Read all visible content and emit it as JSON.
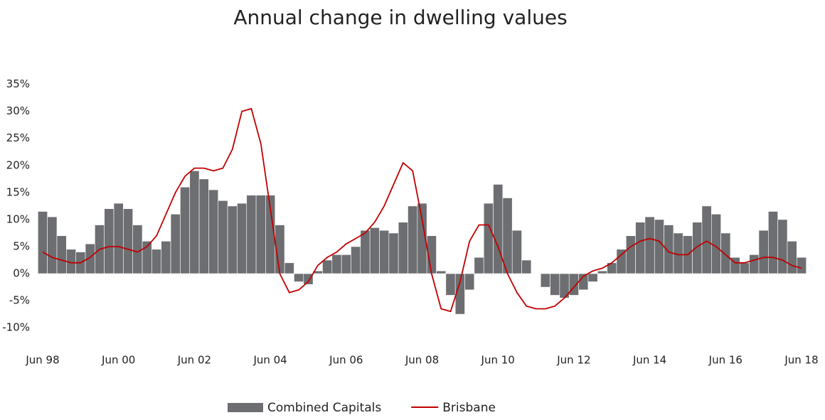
{
  "chart_data": {
    "type": "bar_line",
    "title": "Annual change in dwelling values",
    "categories": [
      "Jun 98",
      null,
      null,
      null,
      null,
      null,
      null,
      null,
      "Jun 00",
      null,
      null,
      null,
      null,
      null,
      null,
      null,
      "Jun 02",
      null,
      null,
      null,
      null,
      null,
      null,
      null,
      "Jun 04",
      null,
      null,
      null,
      null,
      null,
      null,
      null,
      "Jun 06",
      null,
      null,
      null,
      null,
      null,
      null,
      null,
      "Jun 08",
      null,
      null,
      null,
      null,
      null,
      null,
      null,
      "Jun 10",
      null,
      null,
      null,
      null,
      null,
      null,
      null,
      "Jun 12",
      null,
      null,
      null,
      null,
      null,
      null,
      null,
      "Jun 14",
      null,
      null,
      null,
      null,
      null,
      null,
      null,
      "Jun 16",
      null,
      null,
      null,
      null,
      null,
      null,
      null,
      "Jun 18"
    ],
    "series": [
      {
        "name": "Combined Capitals",
        "type": "bar",
        "color": "#6d6e71",
        "values": [
          11.5,
          10.5,
          7,
          4.5,
          4,
          5.5,
          9,
          12,
          13,
          12,
          9,
          6,
          4.5,
          6,
          11,
          16,
          19,
          17.5,
          15.5,
          13.5,
          12.5,
          13,
          14.5,
          14.5,
          14.5,
          9,
          2,
          -1.5,
          -2,
          0.5,
          2.5,
          3.5,
          3.5,
          5,
          8,
          8.5,
          8,
          7.5,
          9.5,
          12.5,
          13,
          7,
          0.5,
          -4,
          -7.5,
          -3,
          3,
          13,
          16.5,
          14,
          8,
          2.5,
          0,
          -2.5,
          -4,
          -4.5,
          -4,
          -3,
          -1.5,
          0.5,
          2,
          4.5,
          7,
          9.5,
          10.5,
          10,
          9,
          7.5,
          7,
          9.5,
          12.5,
          11,
          7.5,
          3,
          2,
          3.5,
          8,
          11.5,
          10,
          6,
          3
        ]
      },
      {
        "name": "Brisbane",
        "type": "line",
        "color": "#c00000",
        "values": [
          4,
          3,
          2.5,
          2,
          2,
          3,
          4.5,
          5,
          5,
          4.5,
          4,
          5,
          7,
          11,
          15,
          18,
          19.5,
          19.5,
          19,
          19.5,
          23,
          30,
          30.5,
          24,
          12,
          0,
          -3.5,
          -3,
          -1.5,
          1.5,
          3,
          4,
          5.5,
          6.5,
          7.5,
          9.5,
          12.5,
          16.5,
          20.5,
          19,
          10,
          0,
          -6.5,
          -7,
          -1.5,
          6,
          9,
          9,
          5,
          0,
          -3.5,
          -6,
          -6.5,
          -6.5,
          -6,
          -4.5,
          -2.5,
          -0.5,
          0.5,
          1,
          2,
          3.5,
          5,
          6,
          6.5,
          6,
          4,
          3.5,
          3.5,
          5,
          6,
          5,
          3.5,
          2,
          2,
          2.5,
          3,
          3,
          2.5,
          1.5,
          1
        ]
      }
    ],
    "ylim": [
      -13,
      36
    ],
    "yticks": [
      {
        "value": -10,
        "label": "-10%"
      },
      {
        "value": -5,
        "label": "-5%"
      },
      {
        "value": 0,
        "label": "0%"
      },
      {
        "value": 5,
        "label": "5%"
      },
      {
        "value": 10,
        "label": "10%"
      },
      {
        "value": 15,
        "label": "15%"
      },
      {
        "value": 20,
        "label": "20%"
      },
      {
        "value": 25,
        "label": "25%"
      },
      {
        "value": 30,
        "label": "30%"
      },
      {
        "value": 35,
        "label": "35%"
      }
    ],
    "legend": "bottom"
  }
}
